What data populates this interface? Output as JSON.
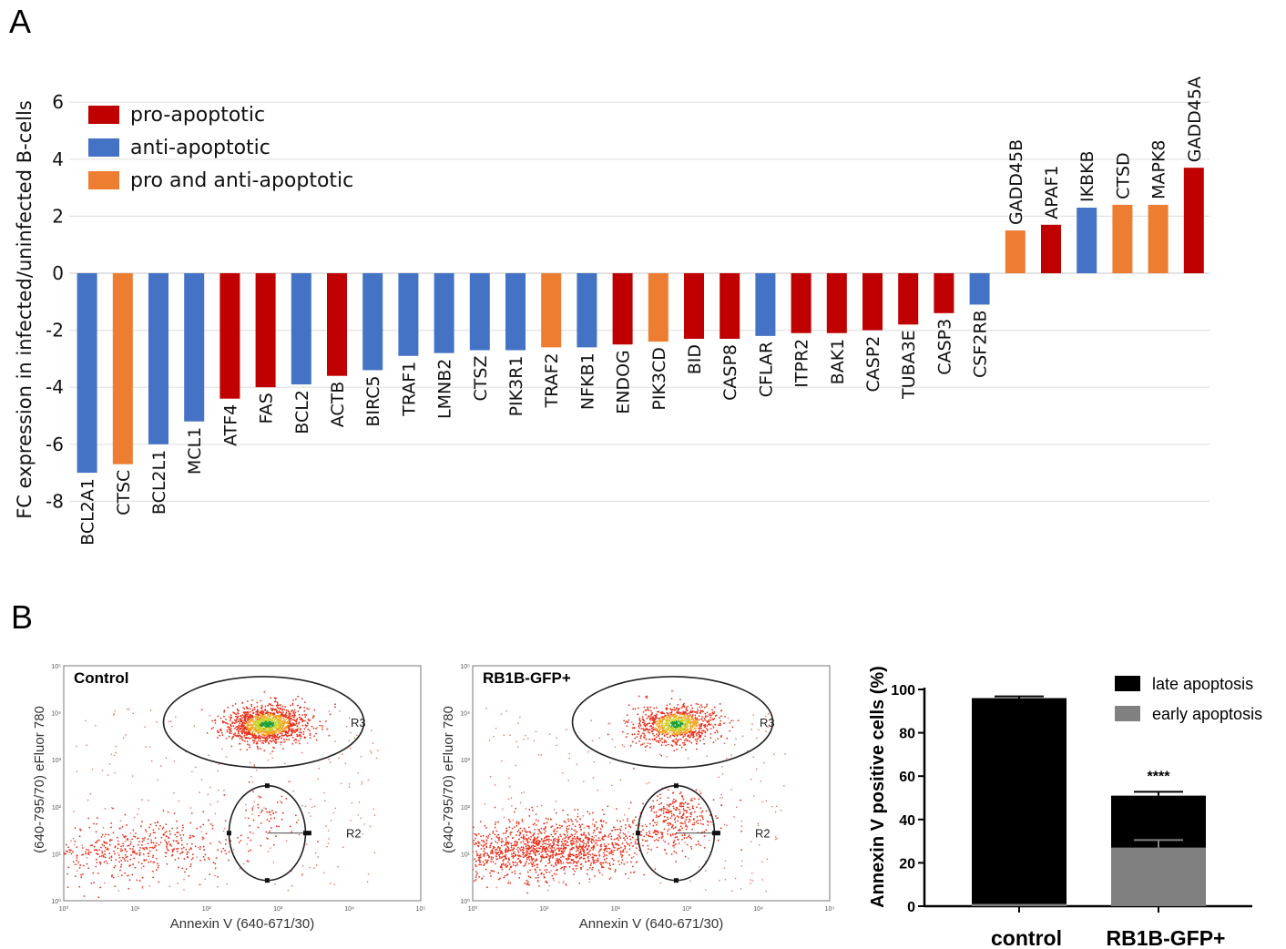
{
  "panel_a": {
    "letter": "A"
  },
  "panel_b": {
    "letter": "B"
  },
  "colors": {
    "pro-apoptotic": "#c00000",
    "anti-apoptotic": "#4472c4",
    "pro and anti-apoptotic": "#ed7d31",
    "late apoptosis": "#000000",
    "early apoptosis": "#808080"
  },
  "chart_data": [
    {
      "type": "bar",
      "panel": "A",
      "ylabel": "FC expression in infected/uninfected B-cells",
      "ylim": [
        -8,
        6
      ],
      "yticks": [
        "6",
        "4",
        "2",
        "0",
        "-2",
        "-4",
        "-6",
        "-8"
      ],
      "grid": true,
      "legend_position": "top-left",
      "legend": [
        "pro-apoptotic",
        "anti-apoptotic",
        "pro and anti-apoptotic"
      ],
      "bars": [
        {
          "gene": "BCL2A1",
          "value": -7.0,
          "class": "anti-apoptotic"
        },
        {
          "gene": "CTSC",
          "value": -6.7,
          "class": "pro and anti-apoptotic"
        },
        {
          "gene": "BCL2L1",
          "value": -6.0,
          "class": "anti-apoptotic"
        },
        {
          "gene": "MCL1",
          "value": -5.2,
          "class": "anti-apoptotic"
        },
        {
          "gene": "ATF4",
          "value": -4.4,
          "class": "pro-apoptotic"
        },
        {
          "gene": "FAS",
          "value": -4.0,
          "class": "pro-apoptotic"
        },
        {
          "gene": "BCL2",
          "value": -3.9,
          "class": "anti-apoptotic"
        },
        {
          "gene": "ACTB",
          "value": -3.6,
          "class": "pro-apoptotic"
        },
        {
          "gene": "BIRC5",
          "value": -3.4,
          "class": "anti-apoptotic"
        },
        {
          "gene": "TRAF1",
          "value": -2.9,
          "class": "anti-apoptotic"
        },
        {
          "gene": "LMNB2",
          "value": -2.8,
          "class": "anti-apoptotic"
        },
        {
          "gene": "CTSZ",
          "value": -2.7,
          "class": "anti-apoptotic"
        },
        {
          "gene": "PIK3R1",
          "value": -2.7,
          "class": "anti-apoptotic"
        },
        {
          "gene": "TRAF2",
          "value": -2.6,
          "class": "pro and anti-apoptotic"
        },
        {
          "gene": "NFKB1",
          "value": -2.6,
          "class": "anti-apoptotic"
        },
        {
          "gene": "ENDOG",
          "value": -2.5,
          "class": "pro-apoptotic"
        },
        {
          "gene": "PIK3CD",
          "value": -2.4,
          "class": "pro and anti-apoptotic"
        },
        {
          "gene": "BID",
          "value": -2.3,
          "class": "pro-apoptotic"
        },
        {
          "gene": "CASP8",
          "value": -2.3,
          "class": "pro-apoptotic"
        },
        {
          "gene": "CFLAR",
          "value": -2.2,
          "class": "anti-apoptotic"
        },
        {
          "gene": "ITPR2",
          "value": -2.1,
          "class": "pro-apoptotic"
        },
        {
          "gene": "BAK1",
          "value": -2.1,
          "class": "pro-apoptotic"
        },
        {
          "gene": "CASP2",
          "value": -2.0,
          "class": "pro-apoptotic"
        },
        {
          "gene": "TUBA3E",
          "value": -1.8,
          "class": "pro-apoptotic"
        },
        {
          "gene": "CASP3",
          "value": -1.4,
          "class": "pro-apoptotic"
        },
        {
          "gene": "CSF2RB",
          "value": -1.1,
          "class": "anti-apoptotic"
        },
        {
          "gene": "GADD45B",
          "value": 1.5,
          "class": "pro and anti-apoptotic"
        },
        {
          "gene": "APAF1",
          "value": 1.7,
          "class": "pro-apoptotic"
        },
        {
          "gene": "IKBKB",
          "value": 2.3,
          "class": "anti-apoptotic"
        },
        {
          "gene": "CTSD",
          "value": 2.4,
          "class": "pro and anti-apoptotic"
        },
        {
          "gene": "MAPK8",
          "value": 2.4,
          "class": "pro and anti-apoptotic"
        },
        {
          "gene": "GADD45A",
          "value": 3.7,
          "class": "pro-apoptotic"
        }
      ]
    },
    {
      "type": "scatter",
      "panel": "B",
      "title": "Control",
      "xlabel": "Annexin V (640-671/30)",
      "ylabel": "(640-795/70) eFluor 780",
      "scale": "log",
      "xlim": [
        1,
        100000
      ],
      "ylim": [
        1,
        100000
      ],
      "tick_labels": [
        "10⁰",
        "10¹",
        "10²",
        "10³",
        "10⁴",
        "10⁵"
      ],
      "gates": [
        "R3",
        "R2"
      ],
      "populations": {
        "debris_density": 0.35,
        "r3_density": 1.0,
        "r2_density": 0.1
      }
    },
    {
      "type": "scatter",
      "panel": "B",
      "title": "RB1B-GFP+",
      "xlabel": "Annexin V (640-671/30)",
      "ylabel": "(640-795/70) eFluor 780",
      "scale": "log",
      "xlim": [
        1,
        100000
      ],
      "ylim": [
        1,
        100000
      ],
      "tick_labels": [
        "10⁰",
        "10¹",
        "10²",
        "10³",
        "10⁴",
        "10⁵"
      ],
      "gates": [
        "R3",
        "R2"
      ],
      "populations": {
        "debris_density": 1.0,
        "r3_density": 0.75,
        "r2_density": 0.55
      }
    },
    {
      "type": "bar",
      "panel": "B",
      "stacked": true,
      "ylabel": "Annexin V positive cells (%)",
      "ylim": [
        0,
        100
      ],
      "yticks": [
        "0",
        "20",
        "40",
        "60",
        "80",
        "100"
      ],
      "categories": [
        "control",
        "RB1B-GFP+"
      ],
      "series": [
        {
          "name": "early apoptosis",
          "values": [
            1,
            27
          ],
          "errors": [
            0,
            3.5
          ]
        },
        {
          "name": "late apoptosis",
          "values": [
            95,
            24
          ],
          "errors": [
            0.8,
            1.8
          ]
        }
      ],
      "significance": [
        "",
        "****"
      ],
      "legend_position": "top-right"
    }
  ]
}
